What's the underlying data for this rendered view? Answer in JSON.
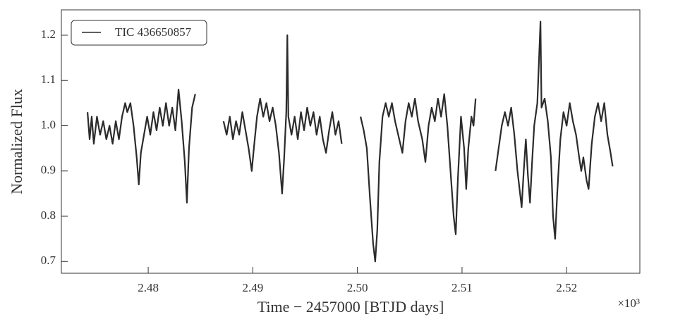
{
  "chart_data": {
    "type": "line",
    "xlabel": "Time − 2457000 [BTJD days]",
    "ylabel": "Normalized Flux",
    "x_offset_label": "×10³",
    "xlim": [
      2471.7,
      2527.0
    ],
    "ylim": [
      0.674,
      1.256
    ],
    "xticks": [
      {
        "value": 2480,
        "label": "2.48"
      },
      {
        "value": 2490,
        "label": "2.49"
      },
      {
        "value": 2500,
        "label": "2.50"
      },
      {
        "value": 2510,
        "label": "2.51"
      },
      {
        "value": 2520,
        "label": "2.52"
      }
    ],
    "yticks": [
      0.7,
      0.8,
      0.9,
      {
        "value": 1.0,
        "label": "1.0"
      },
      1.1,
      1.2
    ],
    "legend": "upper left",
    "x": [
      2474.2,
      2474.4,
      2474.6,
      2474.8,
      2475.1,
      2475.4,
      2475.7,
      2476.0,
      2476.3,
      2476.6,
      2476.9,
      2477.2,
      2477.5,
      2477.8,
      2478.0,
      2478.3,
      2478.6,
      2478.9,
      2479.1,
      2479.3,
      2479.6,
      2479.9,
      2480.2,
      2480.5,
      2480.8,
      2481.1,
      2481.4,
      2481.7,
      2482.0,
      2482.3,
      2482.6,
      2482.9,
      2483.2,
      2483.5,
      2483.7,
      2483.9,
      2484.2,
      2484.5,
      2485.8,
      2487.2,
      2487.5,
      2487.8,
      2488.1,
      2488.4,
      2488.7,
      2489.0,
      2489.3,
      2489.6,
      2489.9,
      2490.1,
      2490.4,
      2490.7,
      2491.0,
      2491.3,
      2491.6,
      2491.9,
      2492.2,
      2492.5,
      2492.8,
      2493.0,
      2493.2,
      2493.3,
      2493.4,
      2493.7,
      2494.0,
      2494.3,
      2494.6,
      2494.9,
      2495.2,
      2495.5,
      2495.8,
      2496.1,
      2496.4,
      2496.7,
      2497.0,
      2497.3,
      2497.6,
      2497.9,
      2498.2,
      2498.5,
      2499.4,
      2500.3,
      2500.6,
      2500.9,
      2501.2,
      2501.5,
      2501.7,
      2501.9,
      2502.1,
      2502.4,
      2502.7,
      2503.0,
      2503.3,
      2503.6,
      2503.9,
      2504.3,
      2504.6,
      2504.9,
      2505.2,
      2505.5,
      2505.8,
      2506.2,
      2506.5,
      2506.8,
      2507.1,
      2507.4,
      2507.7,
      2508.0,
      2508.3,
      2508.6,
      2508.9,
      2509.2,
      2509.4,
      2509.6,
      2509.9,
      2510.2,
      2510.4,
      2510.6,
      2510.9,
      2511.1,
      2511.3,
      2512.2,
      2513.2,
      2513.5,
      2513.8,
      2514.1,
      2514.4,
      2514.7,
      2515.0,
      2515.3,
      2515.7,
      2515.9,
      2516.1,
      2516.3,
      2516.5,
      2516.7,
      2516.9,
      2517.2,
      2517.5,
      2517.6,
      2517.9,
      2518.2,
      2518.5,
      2518.7,
      2518.9,
      2519.1,
      2519.4,
      2519.7,
      2520.0,
      2520.3,
      2520.6,
      2520.9,
      2521.2,
      2521.4,
      2521.6,
      2521.9,
      2522.1,
      2522.4,
      2522.7,
      2523.0,
      2523.3,
      2523.6,
      2523.9,
      2524.2,
      2524.4
    ],
    "series": [
      {
        "name": "TIC 436650857",
        "color": "#2b2b2b",
        "values": [
          1.03,
          0.97,
          1.02,
          0.96,
          1.02,
          0.98,
          1.01,
          0.97,
          1.0,
          0.96,
          1.01,
          0.97,
          1.02,
          1.05,
          1.03,
          1.05,
          1.0,
          0.93,
          0.87,
          0.94,
          0.98,
          1.02,
          0.98,
          1.03,
          0.99,
          1.04,
          1.0,
          1.05,
          1.0,
          1.04,
          0.99,
          1.08,
          1.01,
          0.92,
          0.83,
          0.95,
          1.04,
          1.07,
          null,
          1.01,
          0.98,
          1.02,
          0.97,
          1.01,
          0.98,
          1.03,
          0.99,
          0.95,
          0.9,
          0.95,
          1.02,
          1.06,
          1.02,
          1.05,
          1.01,
          1.04,
          1.0,
          0.94,
          0.85,
          0.93,
          1.03,
          1.2,
          1.02,
          0.98,
          1.02,
          0.97,
          1.03,
          0.99,
          1.04,
          1.0,
          1.03,
          0.98,
          1.02,
          0.97,
          0.94,
          0.99,
          1.03,
          0.98,
          1.01,
          0.96,
          null,
          1.02,
          0.99,
          0.95,
          0.84,
          0.74,
          0.7,
          0.77,
          0.92,
          1.02,
          1.05,
          1.02,
          1.05,
          1.01,
          0.98,
          0.94,
          1.01,
          1.05,
          1.02,
          1.06,
          1.01,
          0.97,
          0.92,
          1.0,
          1.04,
          1.01,
          1.06,
          1.02,
          1.07,
          1.0,
          0.9,
          0.8,
          0.76,
          0.88,
          1.02,
          0.95,
          0.86,
          0.95,
          1.02,
          1.0,
          1.06,
          null,
          0.9,
          0.95,
          1.0,
          1.03,
          1.0,
          1.04,
          0.98,
          0.9,
          0.82,
          0.9,
          0.97,
          0.89,
          0.83,
          0.92,
          1.0,
          1.05,
          1.23,
          1.04,
          1.06,
          1.01,
          0.93,
          0.8,
          0.75,
          0.85,
          0.97,
          1.03,
          1.0,
          1.05,
          1.01,
          0.98,
          0.93,
          0.9,
          0.93,
          0.88,
          0.86,
          0.96,
          1.02,
          1.05,
          1.01,
          1.05,
          0.98,
          0.94,
          0.91
        ]
      }
    ]
  }
}
